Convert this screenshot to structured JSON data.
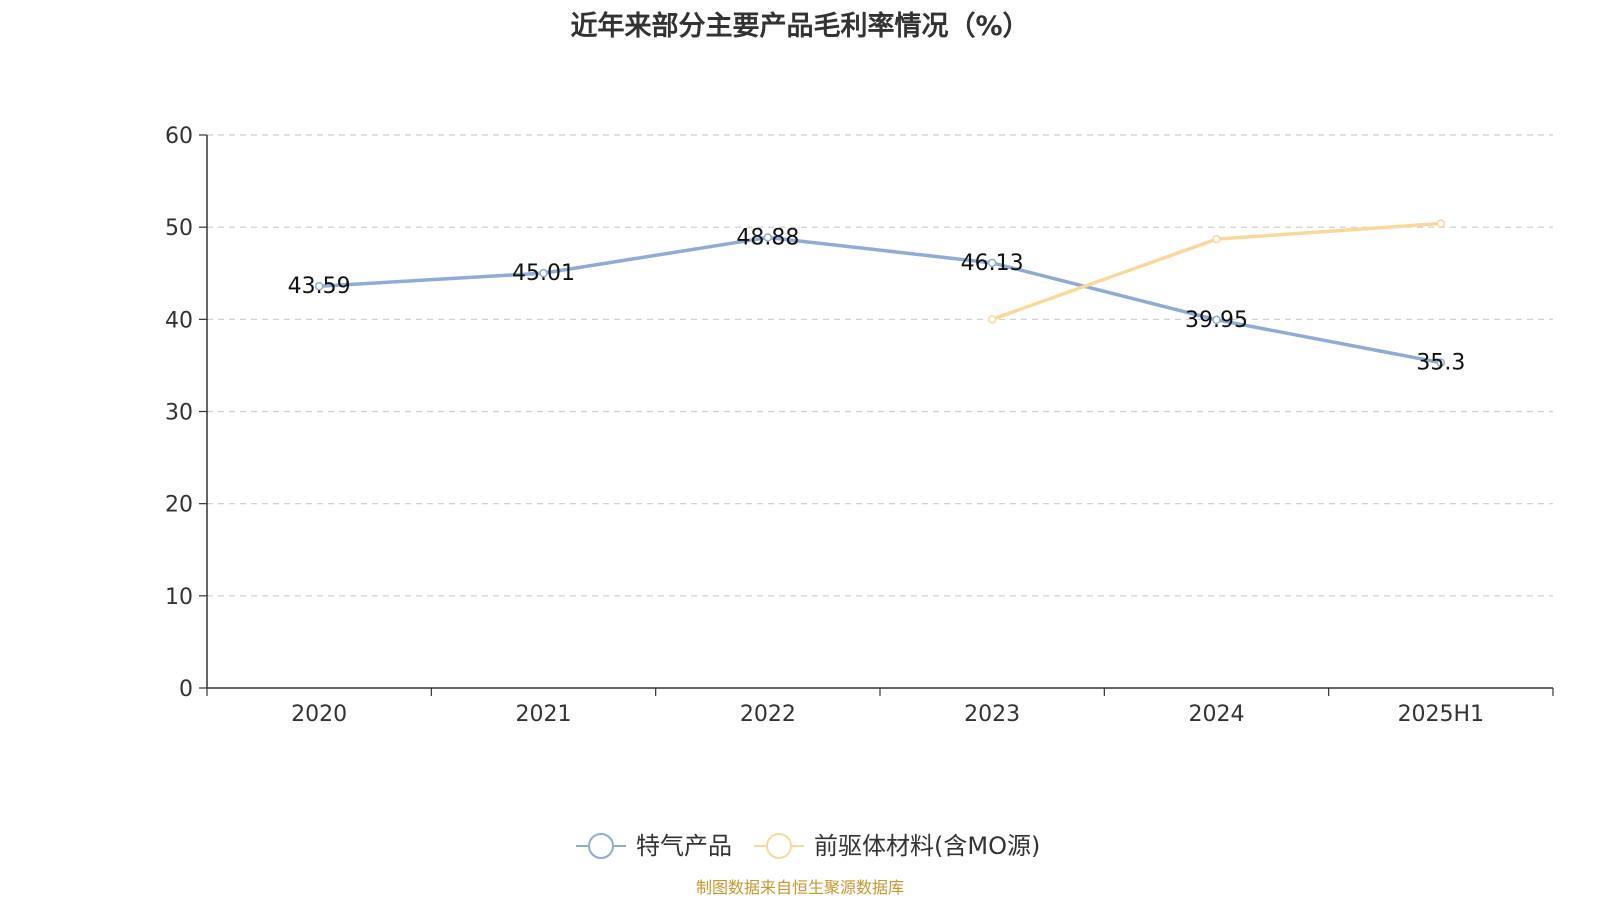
{
  "title": "近年来部分主要产品毛利率情况（%）",
  "source": "制图数据来自恒生聚源数据库",
  "chart_data": {
    "type": "line",
    "categories": [
      "2020",
      "2021",
      "2022",
      "2023",
      "2024",
      "2025H1"
    ],
    "ylim": [
      0,
      60
    ],
    "yticks": [
      0,
      10,
      20,
      30,
      40,
      50,
      60
    ],
    "grid": true,
    "legend_position": "bottom-center",
    "series": [
      {
        "name": "特气产品",
        "color": "#8facd6",
        "values": [
          43.59,
          45.01,
          48.88,
          46.13,
          39.95,
          35.3
        ],
        "labels": [
          "43.59",
          "45.01",
          "48.88",
          "46.13",
          "39.95",
          "35.3"
        ],
        "show_labels": true
      },
      {
        "name": "前驱体材料(含MO源)",
        "color": "#fbd899",
        "values": [
          null,
          null,
          null,
          40,
          48.7,
          50.4
        ],
        "show_labels": false
      }
    ]
  }
}
